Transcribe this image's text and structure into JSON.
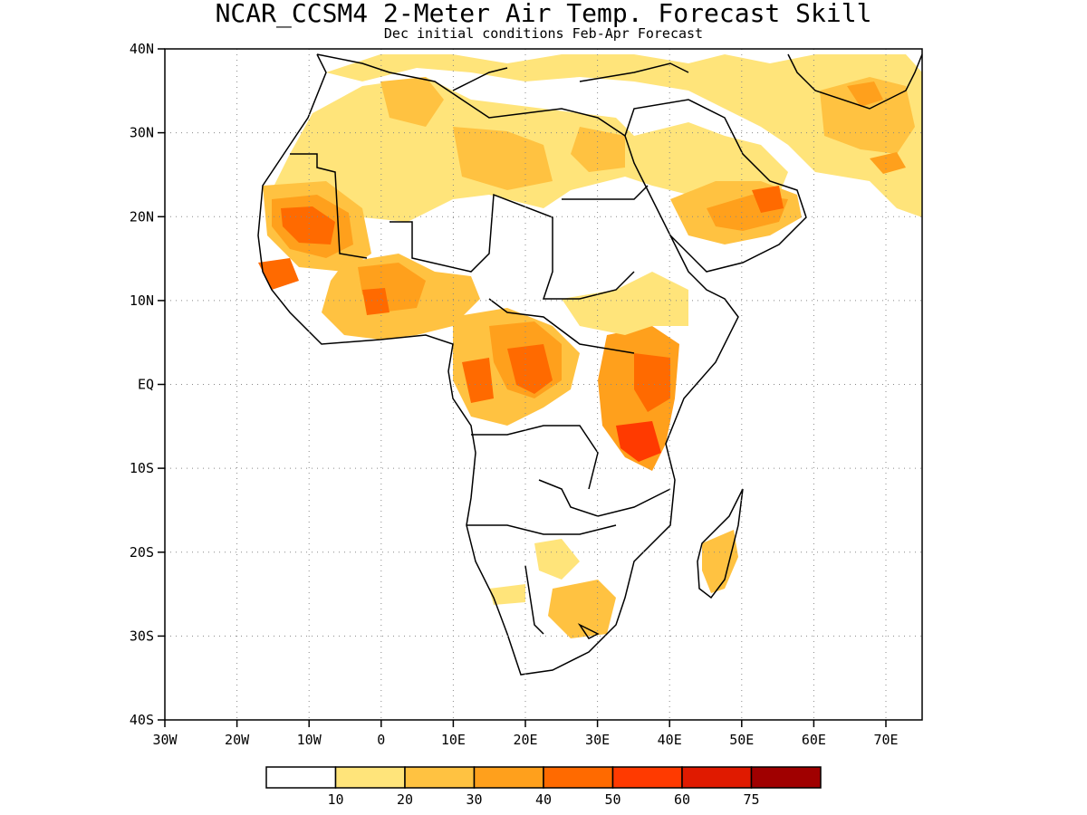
{
  "title": "NCAR_CCSM4 2-Meter Air Temp. Forecast Skill",
  "subtitle": "Dec initial conditions  Feb-Apr Forecast",
  "map": {
    "lon_range": [
      -30,
      75
    ],
    "lat_range": [
      -40,
      40
    ],
    "lon_ticks": [
      "30W",
      "20W",
      "10W",
      "0",
      "10E",
      "20E",
      "30E",
      "40E",
      "50E",
      "60E",
      "70E"
    ],
    "lat_ticks": [
      "40N",
      "30N",
      "20N",
      "10N",
      "EQ",
      "10S",
      "20S",
      "30S",
      "40S"
    ],
    "gridlines": "dotted"
  },
  "colorbar": {
    "colors": [
      "#ffffff",
      "#ffe47a",
      "#ffc241",
      "#ffa01c",
      "#ff6a00",
      "#ff3a00",
      "#e01a00",
      "#a00000"
    ],
    "labels": [
      "10",
      "20",
      "30",
      "40",
      "50",
      "60",
      "75"
    ]
  }
}
